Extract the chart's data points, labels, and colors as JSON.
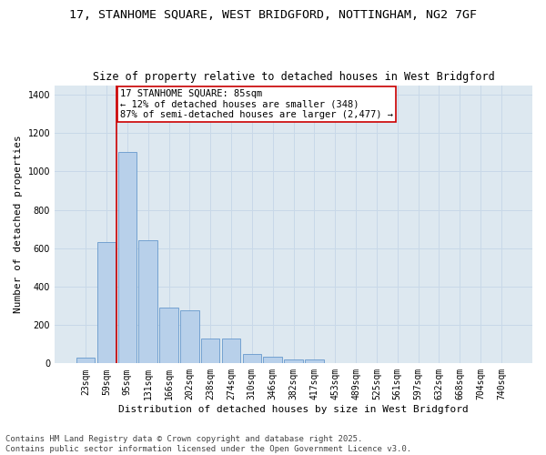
{
  "title_line1": "17, STANHOME SQUARE, WEST BRIDGFORD, NOTTINGHAM, NG2 7GF",
  "title_line2": "Size of property relative to detached houses in West Bridgford",
  "xlabel": "Distribution of detached houses by size in West Bridgford",
  "ylabel": "Number of detached properties",
  "categories": [
    "23sqm",
    "59sqm",
    "95sqm",
    "131sqm",
    "166sqm",
    "202sqm",
    "238sqm",
    "274sqm",
    "310sqm",
    "346sqm",
    "382sqm",
    "417sqm",
    "453sqm",
    "489sqm",
    "525sqm",
    "561sqm",
    "597sqm",
    "632sqm",
    "668sqm",
    "704sqm",
    "740sqm"
  ],
  "values": [
    30,
    630,
    1100,
    640,
    290,
    275,
    130,
    130,
    50,
    35,
    20,
    20,
    0,
    0,
    0,
    0,
    0,
    0,
    0,
    0,
    0
  ],
  "bar_color": "#b8d0ea",
  "bar_edge_color": "#6699cc",
  "vline_x": 1.5,
  "vline_color": "#cc0000",
  "annotation_text": "17 STANHOME SQUARE: 85sqm\n← 12% of detached houses are smaller (348)\n87% of semi-detached houses are larger (2,477) →",
  "annotation_box_color": "#ffffff",
  "annotation_box_edge_color": "#cc0000",
  "grid_color": "#c8d8e8",
  "background_color": "#dde8f0",
  "ylim": [
    0,
    1450
  ],
  "yticks": [
    0,
    200,
    400,
    600,
    800,
    1000,
    1200,
    1400
  ],
  "footer_line1": "Contains HM Land Registry data © Crown copyright and database right 2025.",
  "footer_line2": "Contains public sector information licensed under the Open Government Licence v3.0.",
  "title_fontsize": 9.5,
  "subtitle_fontsize": 8.5,
  "label_fontsize": 8,
  "tick_fontsize": 7,
  "annot_fontsize": 7.5,
  "footer_fontsize": 6.5
}
